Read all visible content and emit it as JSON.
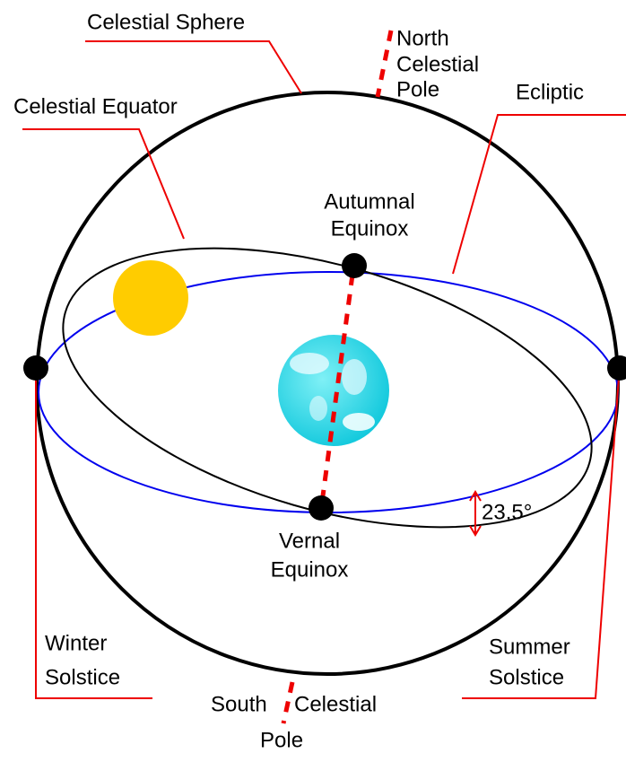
{
  "labels": [
    {
      "lines": [
        "Celestial Sphere"
      ]
    },
    {
      "lines": [
        "North",
        "Celestial",
        "Pole"
      ]
    },
    {
      "lines": [
        "Ecliptic"
      ]
    },
    {
      "lines": [
        "Celestial Equator"
      ]
    },
    {
      "lines": [
        "Autumnal",
        "Equinox"
      ]
    },
    {
      "lines": [
        "23.5°"
      ]
    },
    {
      "lines": [
        "Vernal",
        "Equinox"
      ]
    },
    {
      "lines": [
        "Winter",
        "Solstice"
      ]
    },
    {
      "lines": [
        "Summer",
        "Solstice"
      ]
    },
    {
      "lines": [
        "South",
        "Celestial",
        "Pole"
      ]
    }
  ]
}
